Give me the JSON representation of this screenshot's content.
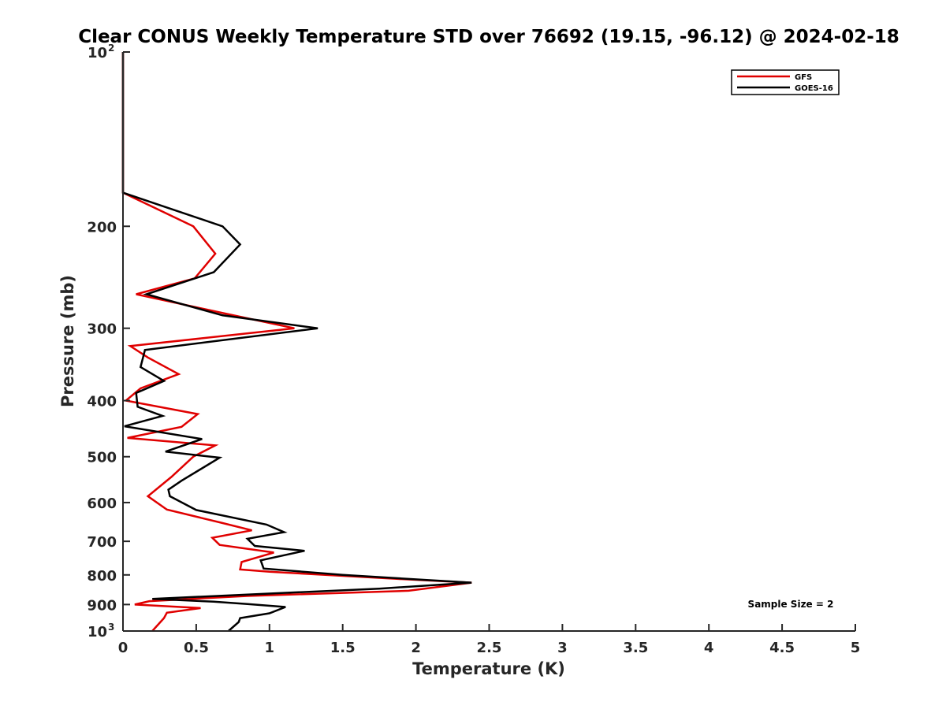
{
  "chart_data": {
    "type": "line",
    "title": "Clear CONUS Weekly Temperature STD over 76692 (19.15, -96.12) @ 2024-02-18",
    "xlabel": "Temperature (K)",
    "ylabel": "Pressure (mb)",
    "xlim": [
      0,
      5
    ],
    "ylim": [
      100,
      1000
    ],
    "y_scale": "log",
    "y_reversed": true,
    "grid": false,
    "legend_position": "top-right",
    "x_ticks": [
      "0",
      "0.5",
      "1",
      "1.5",
      "2",
      "2.5",
      "3",
      "3.5",
      "4",
      "4.5",
      "5"
    ],
    "y_ticks": [
      {
        "value": 100,
        "label": "10",
        "sup": "2"
      },
      {
        "value": 200,
        "label": "200",
        "sup": ""
      },
      {
        "value": 300,
        "label": "300",
        "sup": ""
      },
      {
        "value": 400,
        "label": "400",
        "sup": ""
      },
      {
        "value": 500,
        "label": "500",
        "sup": ""
      },
      {
        "value": 600,
        "label": "600",
        "sup": ""
      },
      {
        "value": 700,
        "label": "700",
        "sup": ""
      },
      {
        "value": 800,
        "label": "800",
        "sup": ""
      },
      {
        "value": 900,
        "label": "900",
        "sup": ""
      },
      {
        "value": 1000,
        "label": "10",
        "sup": "3"
      }
    ],
    "series": [
      {
        "name": "GFS",
        "color": "#e00000",
        "points": [
          [
            0,
            100
          ],
          [
            0,
            175
          ],
          [
            0.48,
            200
          ],
          [
            0.63,
            223
          ],
          [
            0.49,
            246
          ],
          [
            0.09,
            262
          ],
          [
            0.7,
            283
          ],
          [
            1.17,
            300
          ],
          [
            0.05,
            322
          ],
          [
            0.17,
            337
          ],
          [
            0.38,
            360
          ],
          [
            0.12,
            381
          ],
          [
            0.02,
            400
          ],
          [
            0.51,
            422
          ],
          [
            0.4,
            444
          ],
          [
            0.03,
            464
          ],
          [
            0.63,
            478
          ],
          [
            0.48,
            500
          ],
          [
            0.33,
            542
          ],
          [
            0.17,
            585
          ],
          [
            0.3,
            617
          ],
          [
            0.67,
            650
          ],
          [
            0.88,
            670
          ],
          [
            0.61,
            690
          ],
          [
            0.66,
            710
          ],
          [
            1.03,
            732
          ],
          [
            0.81,
            760
          ],
          [
            0.8,
            783
          ],
          [
            1.0,
            790
          ],
          [
            1.88,
            813
          ],
          [
            2.38,
            825
          ],
          [
            1.95,
            852
          ],
          [
            0.85,
            870
          ],
          [
            0.18,
            888
          ],
          [
            0.08,
            900
          ],
          [
            0.53,
            913
          ],
          [
            0.3,
            930
          ],
          [
            0.28,
            950
          ],
          [
            0.2,
            1000
          ]
        ]
      },
      {
        "name": "GOES-16",
        "color": "#000000",
        "points": [
          [
            0,
            100
          ],
          [
            0,
            175
          ],
          [
            0.68,
            200
          ],
          [
            0.8,
            215
          ],
          [
            0.62,
            240
          ],
          [
            0.16,
            262
          ],
          [
            0.68,
            285
          ],
          [
            1.33,
            300
          ],
          [
            0.15,
            327
          ],
          [
            0.12,
            350
          ],
          [
            0.28,
            370
          ],
          [
            0.09,
            388
          ],
          [
            0.1,
            410
          ],
          [
            0.27,
            425
          ],
          [
            0.01,
            443
          ],
          [
            0.54,
            466
          ],
          [
            0.29,
            490
          ],
          [
            0.66,
            502
          ],
          [
            0.4,
            550
          ],
          [
            0.31,
            570
          ],
          [
            0.32,
            585
          ],
          [
            0.5,
            618
          ],
          [
            0.98,
            655
          ],
          [
            1.1,
            675
          ],
          [
            0.85,
            693
          ],
          [
            0.9,
            713
          ],
          [
            1.24,
            727
          ],
          [
            0.94,
            755
          ],
          [
            0.96,
            780
          ],
          [
            1.5,
            800
          ],
          [
            2.38,
            825
          ],
          [
            1.75,
            845
          ],
          [
            0.2,
            880
          ],
          [
            0.62,
            890
          ],
          [
            0.85,
            898
          ],
          [
            1.11,
            909
          ],
          [
            1.0,
            932
          ],
          [
            0.8,
            950
          ],
          [
            0.79,
            965
          ],
          [
            0.72,
            1000
          ]
        ]
      }
    ],
    "annotation": "Sample Size = 2"
  }
}
